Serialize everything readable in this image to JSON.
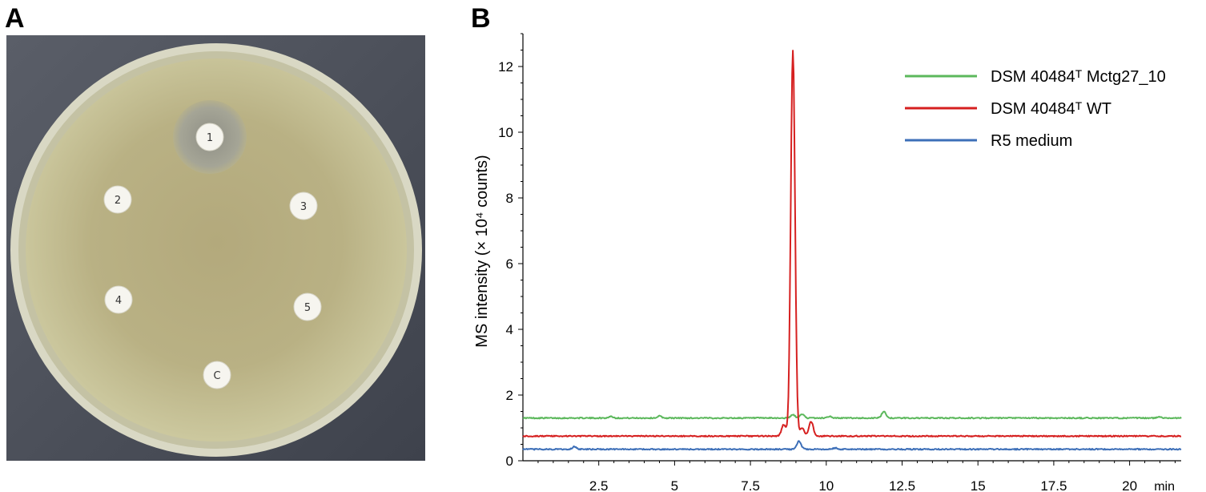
{
  "panels": {
    "a": "A",
    "b": "B"
  },
  "plate": {
    "discs": [
      {
        "label": "1",
        "inhibition_zone": true
      },
      {
        "label": "2",
        "inhibition_zone": false
      },
      {
        "label": "3",
        "inhibition_zone": false
      },
      {
        "label": "4",
        "inhibition_zone": false
      },
      {
        "label": "5",
        "inhibition_zone": false
      },
      {
        "label": "C",
        "inhibition_zone": false
      }
    ]
  },
  "chart_data": {
    "type": "line",
    "title": "",
    "ylabel": "MS intensity (× 10⁴ counts)",
    "xlabel": "",
    "x_unit": "min",
    "xlim": [
      0,
      21.7
    ],
    "ylim": [
      0,
      13
    ],
    "x_ticks": [
      "2.5",
      "5",
      "7.5",
      "10",
      "12.5",
      "15",
      "17.5",
      "20"
    ],
    "y_ticks": [
      "0",
      "2",
      "4",
      "6",
      "8",
      "10",
      "12"
    ],
    "grid": false,
    "legend_position": "top-right",
    "series": [
      {
        "name": "DSM 40484ᵀ Mctg27_10",
        "color": "#5cb85c",
        "baseline": 1.3,
        "peaks": [
          [
            2.9,
            0.05
          ],
          [
            4.5,
            0.06
          ],
          [
            8.9,
            0.1
          ],
          [
            9.2,
            0.12
          ],
          [
            10.1,
            0.05
          ],
          [
            11.9,
            0.2
          ],
          [
            21.0,
            0.04
          ]
        ]
      },
      {
        "name": "DSM 40484ᵀ WT",
        "color": "#d62020",
        "baseline": 0.75,
        "peaks": [
          [
            8.6,
            0.35
          ],
          [
            8.9,
            11.75
          ],
          [
            9.2,
            0.25
          ],
          [
            9.5,
            0.45
          ]
        ]
      },
      {
        "name": "R5 medium",
        "color": "#3d6fb8",
        "baseline": 0.35,
        "peaks": [
          [
            1.7,
            0.08
          ],
          [
            9.1,
            0.25
          ],
          [
            10.3,
            0.04
          ]
        ]
      }
    ]
  }
}
